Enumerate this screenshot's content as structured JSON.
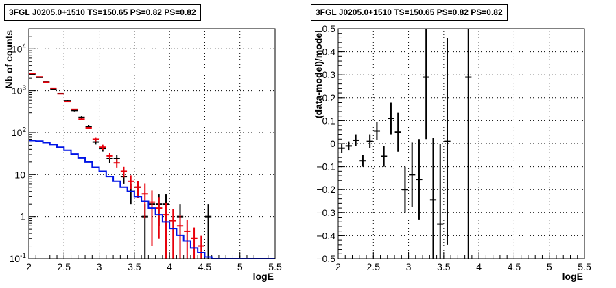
{
  "chart_data": [
    {
      "type": "histogram",
      "title": "3FGL J0205.0+1510 TS=150.65 PS=0.82 PS=0.82",
      "xlabel": "logE",
      "ylabel": "Nb of counts",
      "xlim": [
        2.0,
        5.5
      ],
      "ylim": [
        0.1,
        30000
      ],
      "ylog": true,
      "grid": true,
      "x_tick_labels": [
        "2",
        "2.5",
        "3",
        "3.5",
        "4",
        "4.5",
        "5",
        "5.5"
      ],
      "y_tick_labels": [
        "10^-1",
        "1",
        "10",
        "10^2",
        "10^3",
        "10^4"
      ],
      "series": [
        {
          "color": "#000000",
          "style": "points-with-errors",
          "points": [
            {
              "x": 2.05,
              "y": 2500,
              "err": 50
            },
            {
              "x": 2.15,
              "y": 2100,
              "err": 46
            },
            {
              "x": 2.25,
              "y": 1600,
              "err": 40
            },
            {
              "x": 2.35,
              "y": 1100,
              "err": 33
            },
            {
              "x": 2.45,
              "y": 850,
              "err": 29
            },
            {
              "x": 2.55,
              "y": 580,
              "err": 24
            },
            {
              "x": 2.65,
              "y": 340,
              "err": 18
            },
            {
              "x": 2.75,
              "y": 230,
              "err": 15
            },
            {
              "x": 2.85,
              "y": 140,
              "err": 12
            },
            {
              "x": 2.95,
              "y": 60,
              "err": 8
            },
            {
              "x": 3.05,
              "y": 42,
              "err": 6.5
            },
            {
              "x": 3.15,
              "y": 24,
              "err": 5
            },
            {
              "x": 3.25,
              "y": 24,
              "err": 5
            },
            {
              "x": 3.35,
              "y": 9,
              "err": 3
            },
            {
              "x": 3.45,
              "y": 4,
              "err": 2
            },
            {
              "x": 3.55,
              "y": 5,
              "err": 2.2
            },
            {
              "x": 3.65,
              "y": 1,
              "err": 1
            },
            {
              "x": 3.75,
              "y": 2,
              "err": 1.4
            },
            {
              "x": 3.85,
              "y": 2,
              "err": 1.4
            },
            {
              "x": 3.95,
              "y": 2,
              "err": 1.4
            },
            {
              "x": 4.15,
              "y": 1,
              "err": 1
            },
            {
              "x": 4.55,
              "y": 1,
              "err": 1
            }
          ]
        },
        {
          "color": "#e8000b",
          "style": "model-with-errors",
          "points": [
            {
              "x": 2.05,
              "y": 2600,
              "err": 0
            },
            {
              "x": 2.15,
              "y": 2150,
              "err": 0
            },
            {
              "x": 2.25,
              "y": 1580,
              "err": 0
            },
            {
              "x": 2.35,
              "y": 1150,
              "err": 0
            },
            {
              "x": 2.45,
              "y": 840,
              "err": 0
            },
            {
              "x": 2.55,
              "y": 560,
              "err": 0
            },
            {
              "x": 2.65,
              "y": 360,
              "err": 0
            },
            {
              "x": 2.75,
              "y": 210,
              "err": 0
            },
            {
              "x": 2.85,
              "y": 130,
              "err": 0
            },
            {
              "x": 2.95,
              "y": 70,
              "err": 8
            },
            {
              "x": 3.05,
              "y": 45,
              "err": 6.5
            },
            {
              "x": 3.15,
              "y": 28,
              "err": 5
            },
            {
              "x": 3.25,
              "y": 19,
              "err": 4.2
            },
            {
              "x": 3.35,
              "y": 12,
              "err": 3.4
            },
            {
              "x": 3.45,
              "y": 7,
              "err": 2.6
            },
            {
              "x": 3.55,
              "y": 5,
              "err": 2.2
            },
            {
              "x": 3.65,
              "y": 3.5,
              "err": 2.6
            },
            {
              "x": 3.75,
              "y": 2.2,
              "err": 2.0
            },
            {
              "x": 3.85,
              "y": 1.6,
              "err": 1.3
            },
            {
              "x": 3.95,
              "y": 1.1,
              "err": 1.0
            },
            {
              "x": 4.05,
              "y": 0.8,
              "err": 0.7
            },
            {
              "x": 4.15,
              "y": 0.6,
              "err": 0.5
            },
            {
              "x": 4.25,
              "y": 0.45,
              "err": 0.4
            },
            {
              "x": 4.35,
              "y": 0.3,
              "err": 0.25
            },
            {
              "x": 4.45,
              "y": 0.2,
              "err": 0.15
            }
          ]
        },
        {
          "color": "#0014e6",
          "style": "step",
          "points": [
            {
              "x": 2.0,
              "y": 65
            },
            {
              "x": 2.1,
              "y": 63
            },
            {
              "x": 2.2,
              "y": 58
            },
            {
              "x": 2.3,
              "y": 52
            },
            {
              "x": 2.4,
              "y": 45
            },
            {
              "x": 2.5,
              "y": 38
            },
            {
              "x": 2.6,
              "y": 31
            },
            {
              "x": 2.7,
              "y": 25
            },
            {
              "x": 2.8,
              "y": 20
            },
            {
              "x": 2.9,
              "y": 15
            },
            {
              "x": 3.0,
              "y": 12
            },
            {
              "x": 3.1,
              "y": 9
            },
            {
              "x": 3.2,
              "y": 7
            },
            {
              "x": 3.3,
              "y": 5
            },
            {
              "x": 3.4,
              "y": 4
            },
            {
              "x": 3.5,
              "y": 3
            },
            {
              "x": 3.6,
              "y": 2.3
            },
            {
              "x": 3.7,
              "y": 1.6
            },
            {
              "x": 3.8,
              "y": 1.1
            },
            {
              "x": 3.9,
              "y": 0.75
            },
            {
              "x": 4.0,
              "y": 0.52
            },
            {
              "x": 4.1,
              "y": 0.36
            },
            {
              "x": 4.2,
              "y": 0.26
            },
            {
              "x": 4.3,
              "y": 0.18
            },
            {
              "x": 4.4,
              "y": 0.14
            },
            {
              "x": 4.5,
              "y": 0.11
            },
            {
              "x": 4.6,
              "y": 0.1
            },
            {
              "x": 5.5,
              "y": 0.1
            }
          ]
        }
      ]
    },
    {
      "type": "scatter",
      "title": "3FGL J0205.0+1510 TS=150.65 PS=0.82 PS=0.82",
      "xlabel": "logE",
      "ylabel": "(data-model)/model",
      "xlim": [
        2.0,
        5.5
      ],
      "ylim": [
        -0.5,
        0.5
      ],
      "grid": true,
      "x_tick_labels": [
        "2",
        "2.5",
        "3",
        "3.5",
        "4",
        "4.5",
        "5",
        "5.5"
      ],
      "y_tick_labels": [
        "-0.5",
        "-0.4",
        "-0.3",
        "-0.2",
        "-0.1",
        "0",
        "0.1",
        "0.2",
        "0.3",
        "0.4",
        "0.5"
      ],
      "series": [
        {
          "color": "#000000",
          "style": "points-with-errors",
          "points": [
            {
              "x": 2.05,
              "y": -0.02,
              "err": 0.02
            },
            {
              "x": 2.15,
              "y": -0.01,
              "err": 0.02
            },
            {
              "x": 2.25,
              "y": 0.015,
              "err": 0.025
            },
            {
              "x": 2.35,
              "y": -0.075,
              "err": 0.025
            },
            {
              "x": 2.45,
              "y": 0.01,
              "err": 0.03
            },
            {
              "x": 2.55,
              "y": 0.055,
              "err": 0.04
            },
            {
              "x": 2.65,
              "y": -0.055,
              "err": 0.045
            },
            {
              "x": 2.75,
              "y": 0.11,
              "err": 0.07
            },
            {
              "x": 2.85,
              "y": 0.05,
              "err": 0.085
            },
            {
              "x": 2.95,
              "y": -0.2,
              "err": 0.1
            },
            {
              "x": 3.05,
              "y": -0.135,
              "err": 0.14
            },
            {
              "x": 3.15,
              "y": -0.155,
              "err": 0.175
            },
            {
              "x": 3.25,
              "y": 0.29,
              "err": 0.27
            },
            {
              "x": 3.35,
              "y": -0.245,
              "err": 0.27
            },
            {
              "x": 3.45,
              "y": -0.35,
              "err": 0.35
            },
            {
              "x": 3.55,
              "y": 0.01,
              "err": 0.45
            },
            {
              "x": 3.85,
              "y": 0.29,
              "err": 0.8
            }
          ]
        }
      ]
    }
  ]
}
